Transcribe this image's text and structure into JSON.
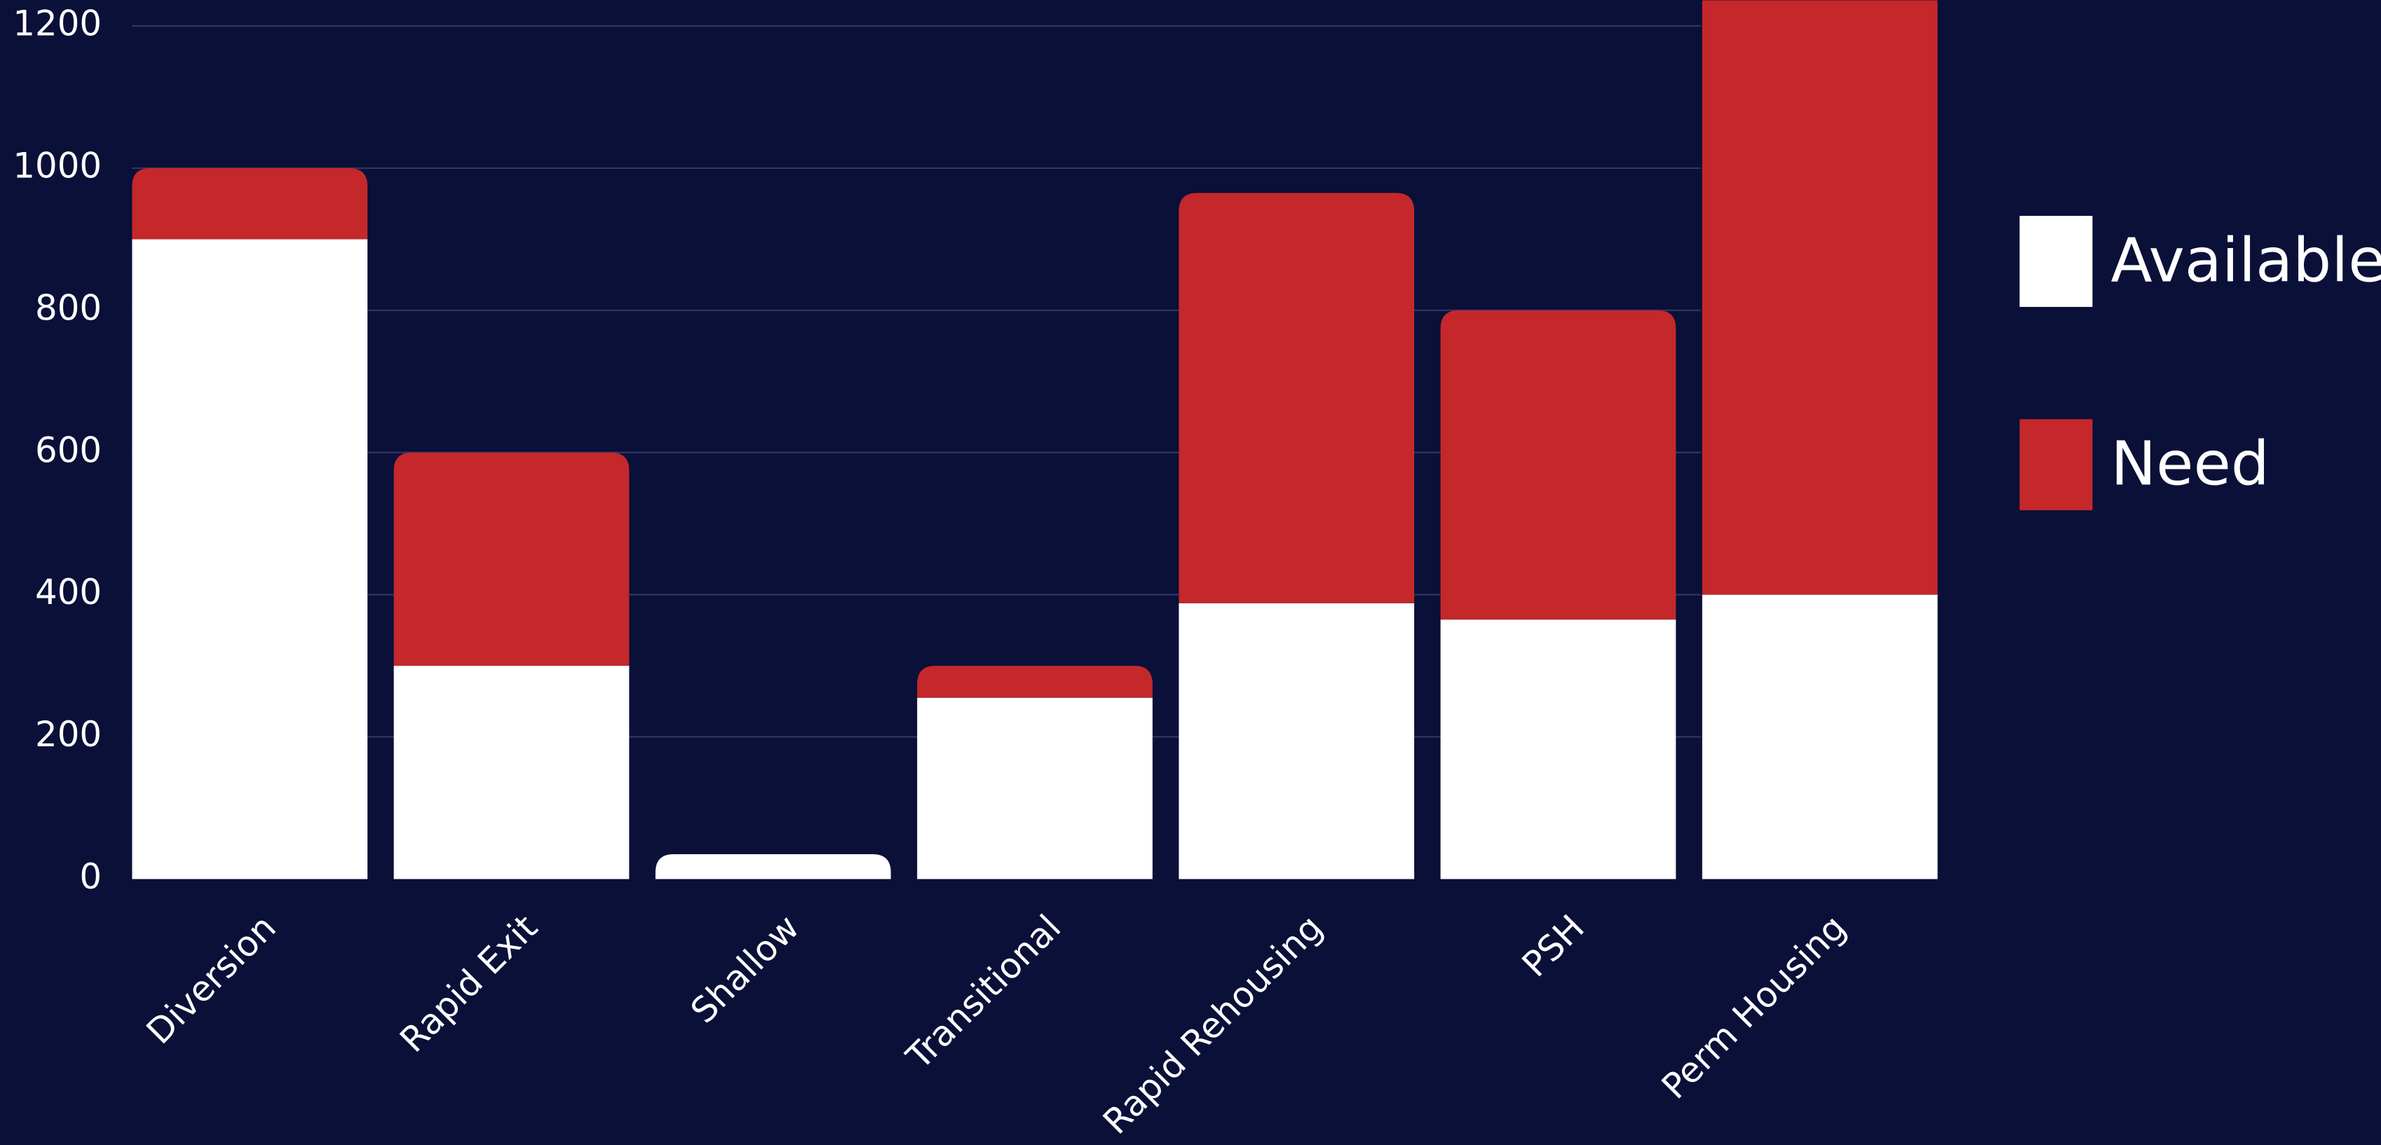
{
  "chart_data": {
    "type": "stacked_bar",
    "categories": [
      "Diversion",
      "Rapid Exit",
      "Shallow",
      "Transitional",
      "Rapid Rehousing",
      "PSH",
      "Perm Housing"
    ],
    "series": [
      {
        "name": "Available",
        "color": "#ffffff",
        "values": [
          900,
          300,
          35,
          255,
          388,
          365,
          400
        ]
      },
      {
        "name": "Need",
        "color": "#c4282b",
        "values": [
          100,
          300,
          0,
          45,
          577,
          435,
          900
        ]
      }
    ],
    "ylim": [
      0,
      1236
    ],
    "yticks": [
      0,
      200,
      400,
      600,
      800,
      1000,
      1200
    ],
    "grid": true,
    "legend": "right"
  }
}
